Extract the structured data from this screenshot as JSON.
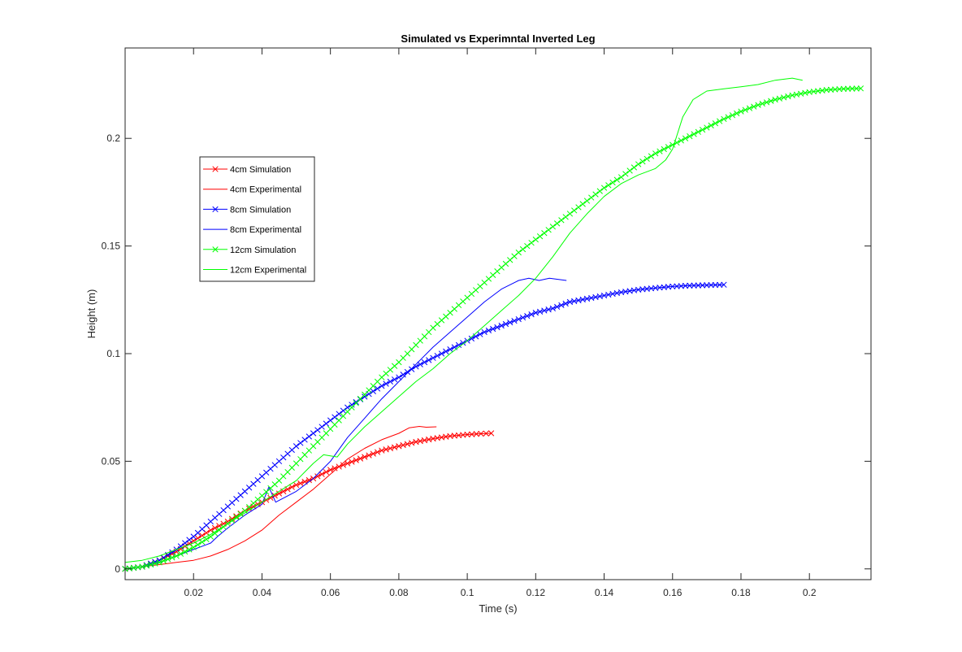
{
  "chart_data": {
    "type": "line",
    "title": "Simulated vs Experimntal Inverted Leg",
    "xlabel": "Time (s)",
    "ylabel": "Height (m)",
    "xlim": [
      0,
      0.218
    ],
    "ylim": [
      -0.005,
      0.242
    ],
    "xticks": [
      0.02,
      0.04,
      0.06,
      0.08,
      0.1,
      0.12,
      0.14,
      0.16,
      0.18,
      0.2
    ],
    "xtick_labels": [
      "0.02",
      "0.04",
      "0.06",
      "0.08",
      "0.1",
      "0.12",
      "0.14",
      "0.16",
      "0.18",
      "0.2"
    ],
    "yticks": [
      0,
      0.05,
      0.1,
      0.15,
      0.2
    ],
    "ytick_labels": [
      "0",
      "0.05",
      "0.1",
      "0.15",
      "0.2"
    ],
    "grid": false,
    "legend_position": "upper-left",
    "series": [
      {
        "name": "4cm Simulation",
        "color": "#ff0000",
        "style": "line-with-x-markers",
        "x": [
          0,
          0.005,
          0.01,
          0.015,
          0.02,
          0.025,
          0.03,
          0.035,
          0.04,
          0.045,
          0.05,
          0.055,
          0.06,
          0.065,
          0.07,
          0.075,
          0.08,
          0.085,
          0.09,
          0.095,
          0.1,
          0.104,
          0.107
        ],
        "y": [
          0,
          0.001,
          0.004,
          0.008,
          0.013,
          0.018,
          0.022,
          0.027,
          0.031,
          0.035,
          0.039,
          0.042,
          0.046,
          0.049,
          0.052,
          0.055,
          0.057,
          0.059,
          0.0605,
          0.0617,
          0.0624,
          0.0628,
          0.063
        ]
      },
      {
        "name": "4cm Experimental",
        "color": "#ff0000",
        "style": "line",
        "x": [
          0,
          0.005,
          0.01,
          0.015,
          0.02,
          0.025,
          0.03,
          0.035,
          0.04,
          0.045,
          0.05,
          0.055,
          0.06,
          0.065,
          0.07,
          0.075,
          0.08,
          0.083,
          0.086,
          0.088,
          0.091
        ],
        "y": [
          0,
          0.001,
          0.002,
          0.003,
          0.004,
          0.006,
          0.009,
          0.013,
          0.018,
          0.025,
          0.031,
          0.037,
          0.044,
          0.051,
          0.056,
          0.06,
          0.063,
          0.0655,
          0.0662,
          0.0658,
          0.066
        ]
      },
      {
        "name": "8cm Simulation",
        "color": "#0000ff",
        "style": "line-with-x-markers",
        "x": [
          0,
          0.005,
          0.01,
          0.015,
          0.02,
          0.025,
          0.03,
          0.035,
          0.04,
          0.045,
          0.05,
          0.055,
          0.06,
          0.065,
          0.07,
          0.075,
          0.08,
          0.085,
          0.09,
          0.095,
          0.1,
          0.105,
          0.11,
          0.115,
          0.12,
          0.125,
          0.13,
          0.135,
          0.14,
          0.145,
          0.15,
          0.155,
          0.16,
          0.165,
          0.17,
          0.175
        ],
        "y": [
          0,
          0.001,
          0.004,
          0.009,
          0.015,
          0.022,
          0.029,
          0.036,
          0.043,
          0.05,
          0.057,
          0.063,
          0.069,
          0.075,
          0.08,
          0.085,
          0.089,
          0.094,
          0.098,
          0.102,
          0.106,
          0.11,
          0.113,
          0.116,
          0.119,
          0.121,
          0.124,
          0.1255,
          0.127,
          0.1285,
          0.1297,
          0.1305,
          0.1312,
          0.1316,
          0.1318,
          0.132
        ]
      },
      {
        "name": "8cm Experimental",
        "color": "#0000ff",
        "style": "line",
        "x": [
          0,
          0.005,
          0.01,
          0.015,
          0.02,
          0.025,
          0.027,
          0.03,
          0.035,
          0.04,
          0.042,
          0.044,
          0.05,
          0.055,
          0.06,
          0.065,
          0.07,
          0.075,
          0.08,
          0.085,
          0.09,
          0.095,
          0.1,
          0.105,
          0.11,
          0.115,
          0.118,
          0.121,
          0.124,
          0.129
        ],
        "y": [
          0,
          0.001,
          0.003,
          0.006,
          0.009,
          0.012,
          0.015,
          0.019,
          0.025,
          0.03,
          0.038,
          0.031,
          0.036,
          0.042,
          0.05,
          0.061,
          0.07,
          0.079,
          0.087,
          0.095,
          0.103,
          0.11,
          0.117,
          0.124,
          0.13,
          0.134,
          0.135,
          0.134,
          0.135,
          0.134
        ]
      },
      {
        "name": "12cm Simulation",
        "color": "#00ff00",
        "style": "line-with-x-markers",
        "x": [
          0,
          0.005,
          0.01,
          0.015,
          0.02,
          0.025,
          0.03,
          0.035,
          0.04,
          0.045,
          0.05,
          0.055,
          0.06,
          0.065,
          0.07,
          0.075,
          0.08,
          0.085,
          0.09,
          0.095,
          0.1,
          0.105,
          0.11,
          0.115,
          0.12,
          0.125,
          0.13,
          0.135,
          0.14,
          0.145,
          0.15,
          0.155,
          0.16,
          0.165,
          0.17,
          0.175,
          0.18,
          0.185,
          0.19,
          0.195,
          0.2,
          0.205,
          0.21,
          0.215
        ],
        "y": [
          0,
          0.001,
          0.003,
          0.006,
          0.01,
          0.015,
          0.021,
          0.027,
          0.034,
          0.041,
          0.049,
          0.057,
          0.065,
          0.073,
          0.081,
          0.089,
          0.096,
          0.104,
          0.112,
          0.119,
          0.126,
          0.133,
          0.14,
          0.147,
          0.153,
          0.159,
          0.165,
          0.171,
          0.177,
          0.182,
          0.188,
          0.193,
          0.197,
          0.201,
          0.205,
          0.209,
          0.2125,
          0.2155,
          0.218,
          0.22,
          0.2215,
          0.2225,
          0.223,
          0.2232
        ]
      },
      {
        "name": "12cm Experimental",
        "color": "#00ff00",
        "style": "line",
        "x": [
          0,
          0.005,
          0.01,
          0.015,
          0.02,
          0.025,
          0.03,
          0.035,
          0.04,
          0.045,
          0.05,
          0.055,
          0.058,
          0.062,
          0.065,
          0.07,
          0.075,
          0.08,
          0.085,
          0.09,
          0.095,
          0.1,
          0.105,
          0.11,
          0.115,
          0.12,
          0.125,
          0.13,
          0.135,
          0.14,
          0.145,
          0.15,
          0.155,
          0.158,
          0.16,
          0.163,
          0.166,
          0.168,
          0.17,
          0.175,
          0.18,
          0.185,
          0.19,
          0.195,
          0.198
        ],
        "y": [
          0.003,
          0.004,
          0.006,
          0.009,
          0.012,
          0.016,
          0.021,
          0.026,
          0.031,
          0.036,
          0.041,
          0.049,
          0.053,
          0.052,
          0.058,
          0.066,
          0.073,
          0.08,
          0.087,
          0.093,
          0.1,
          0.106,
          0.113,
          0.12,
          0.127,
          0.135,
          0.145,
          0.156,
          0.165,
          0.173,
          0.179,
          0.183,
          0.186,
          0.19,
          0.195,
          0.21,
          0.218,
          0.22,
          0.222,
          0.223,
          0.224,
          0.225,
          0.227,
          0.228,
          0.227
        ]
      }
    ]
  }
}
